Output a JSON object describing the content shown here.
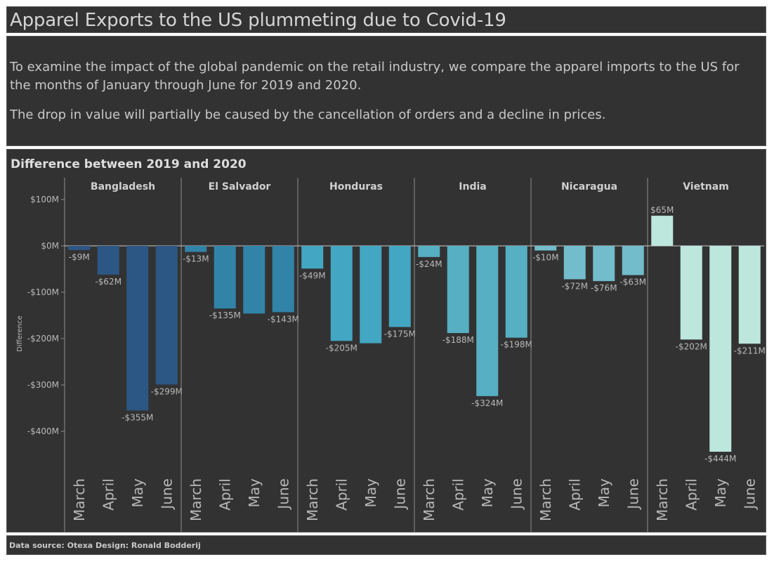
{
  "title": "Apparel Exports to the US plummeting due to Covid-19",
  "intro": {
    "paragraph1": "To examine the impact of the global pandemic on the retail industry, we compare the apparel imports to the US for the months of January through June for 2019 and 2020.",
    "paragraph2": "The drop in value will partially be caused by the cancellation of orders and a decline in prices."
  },
  "footer": "Data source: Otexa   Design: Ronald Bodderij",
  "chart_data": {
    "type": "bar",
    "title": "Difference between 2019 and 2020",
    "ylabel": "Difference",
    "xlabel": "",
    "ylim": [
      -500,
      100
    ],
    "y_ticks": [
      100,
      0,
      -100,
      -200,
      -300,
      -400
    ],
    "y_tick_labels": [
      "$100M",
      "$0M",
      "-$100M",
      "-$200M",
      "-$300M",
      "-$400M"
    ],
    "grid": false,
    "panels": [
      {
        "name": "Bangladesh",
        "color": "#2c5784",
        "categories": [
          "March",
          "April",
          "May",
          "June"
        ],
        "values": [
          -9,
          -62,
          -355,
          -299
        ],
        "labels": [
          "-$9M",
          "-$62M",
          "-$355M",
          "-$299M"
        ]
      },
      {
        "name": "El Salvador",
        "color": "#3283a8",
        "categories": [
          "March",
          "April",
          "May",
          "June"
        ],
        "values": [
          -13,
          -135,
          -146,
          -143
        ],
        "labels": [
          "-$13M",
          "-$135M",
          "",
          "-$143M"
        ]
      },
      {
        "name": "Honduras",
        "color": "#43a6c2",
        "categories": [
          "March",
          "April",
          "May",
          "June"
        ],
        "values": [
          -49,
          -205,
          -210,
          -175
        ],
        "labels": [
          "-$49M",
          "-$205M",
          "",
          "-$175M"
        ]
      },
      {
        "name": "India",
        "color": "#56afc2",
        "categories": [
          "March",
          "April",
          "May",
          "June"
        ],
        "values": [
          -24,
          -188,
          -324,
          -198
        ],
        "labels": [
          "-$24M",
          "-$188M",
          "-$324M",
          "-$198M"
        ]
      },
      {
        "name": "Nicaragua",
        "color": "#72bccb",
        "categories": [
          "March",
          "April",
          "May",
          "June"
        ],
        "values": [
          -10,
          -72,
          -76,
          -63
        ],
        "labels": [
          "-$10M",
          "-$72M",
          "-$76M",
          "-$63M"
        ]
      },
      {
        "name": "Vietnam",
        "color": "#bde6dc",
        "categories": [
          "March",
          "April",
          "May",
          "June"
        ],
        "values": [
          65,
          -202,
          -444,
          -211
        ],
        "labels": [
          "$65M",
          "-$202M",
          "-$444M",
          "-$211M"
        ]
      }
    ]
  }
}
